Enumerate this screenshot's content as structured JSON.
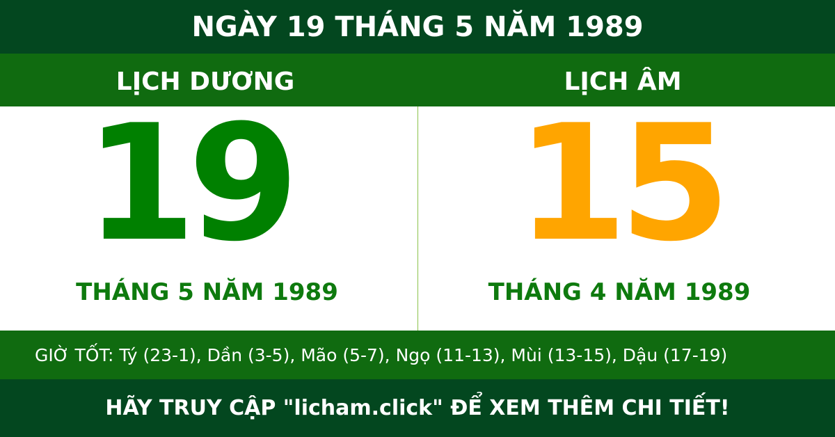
{
  "title": "NGÀY 19 THÁNG 5 NĂM 1989",
  "solar": {
    "heading": "LỊCH DƯƠNG",
    "day": "19",
    "month_year": "THÁNG 5 NĂM 1989",
    "color": "#008000"
  },
  "lunar": {
    "heading": "LỊCH ÂM",
    "day": "15",
    "month_year": "THÁNG 4 NĂM 1989",
    "color": "#ffa500"
  },
  "good_hours": "GIỜ TỐT: Tý (23-1), Dần (3-5), Mão (5-7), Ngọ (11-13), Mùi (13-15), Dậu (17-19)",
  "footer": "HÃY TRUY CẬP \"licham.click\" ĐỂ XEM THÊM CHI TIẾT!",
  "colors": {
    "dark_green": "#03471f",
    "green": "#106b10"
  }
}
